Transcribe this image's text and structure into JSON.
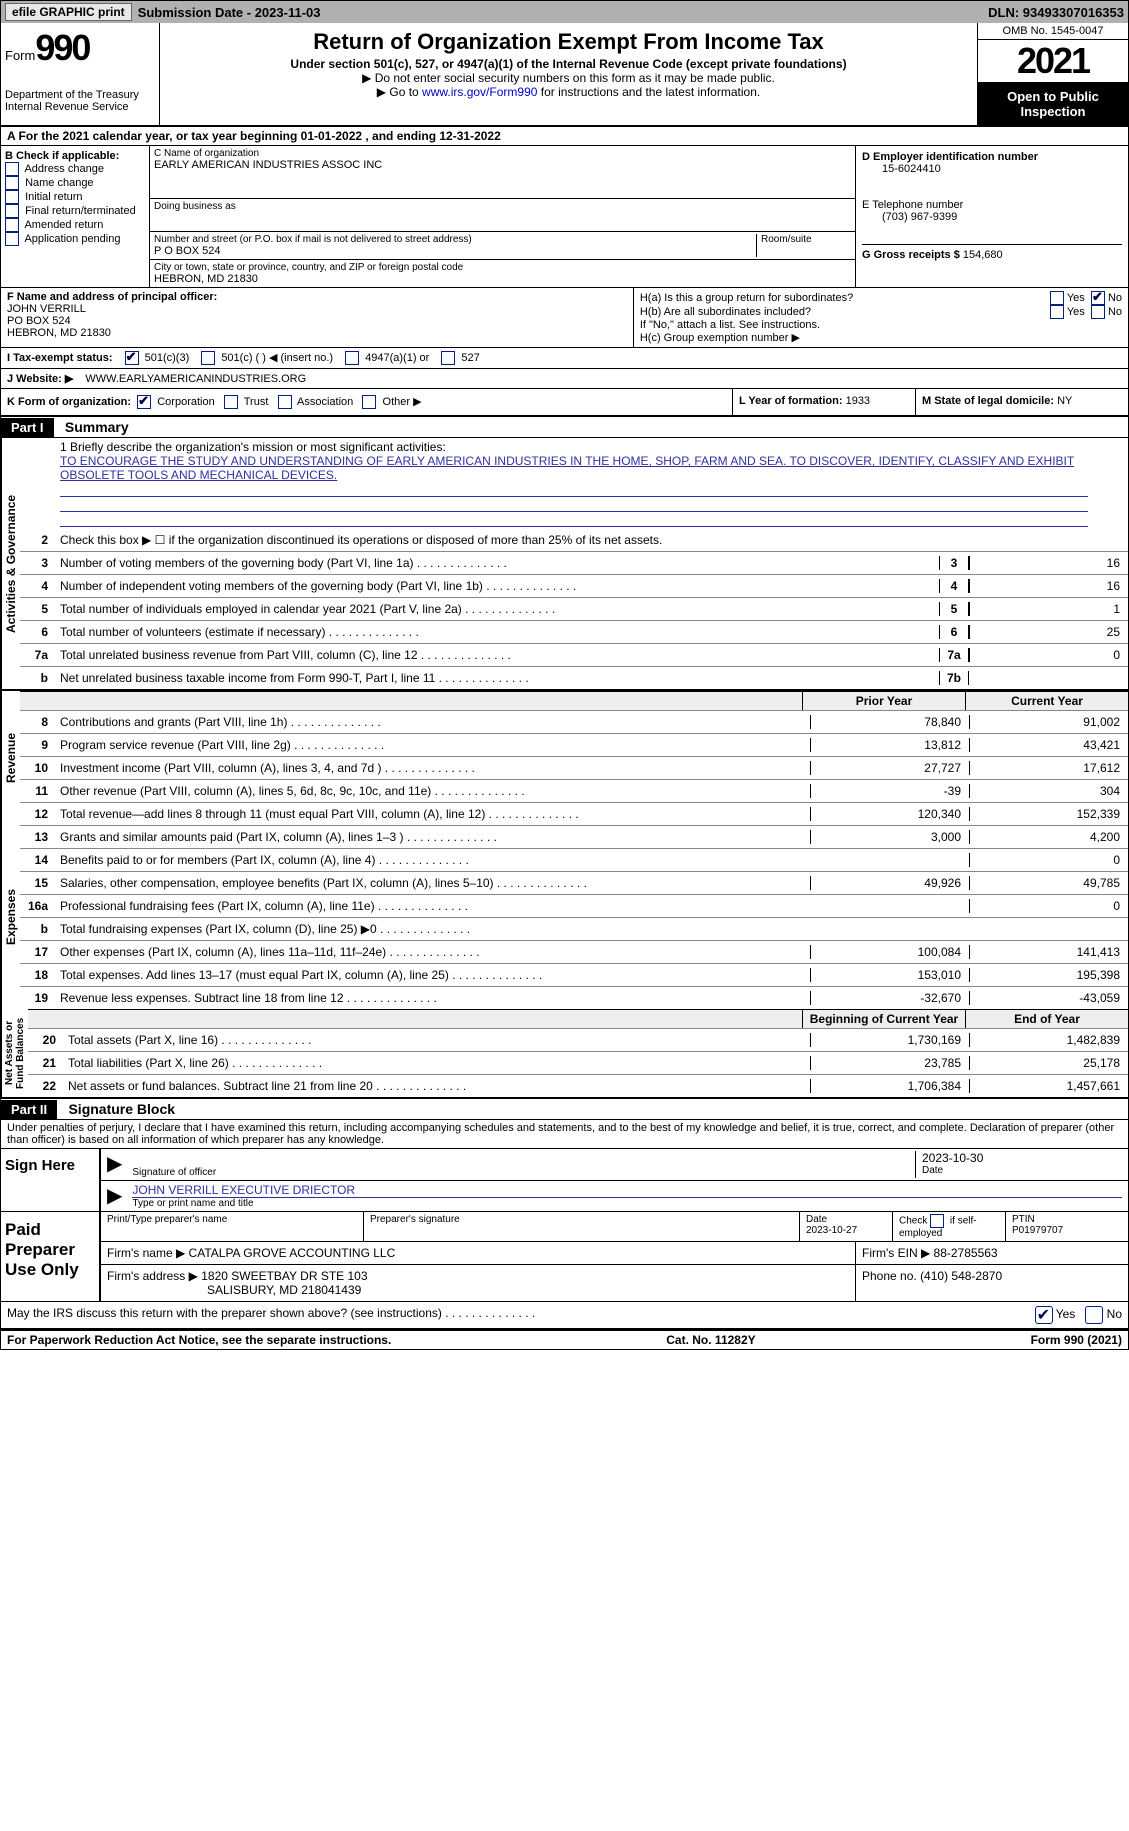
{
  "topbar": {
    "btn1": "efile GRAPHIC print",
    "submission": "Submission Date - 2023-11-03",
    "dln": "DLN: 93493307016353"
  },
  "header": {
    "form_prefix": "Form",
    "form_no": "990",
    "title": "Return of Organization Exempt From Income Tax",
    "sub1": "Under section 501(c), 527, or 4947(a)(1) of the Internal Revenue Code (except private foundations)",
    "sub2a": "▶ Do not enter social security numbers on this form as it may be made public.",
    "sub2b_pre": "▶ Go to ",
    "sub2b_link": "www.irs.gov/Form990",
    "sub2b_post": " for instructions and the latest information.",
    "dept": "Department of the Treasury\nInternal Revenue Service",
    "omb": "OMB No. 1545-0047",
    "year": "2021",
    "inspect": "Open to Public Inspection"
  },
  "line_a": "A For the 2021 calendar year, or tax year beginning 01-01-2022    , and ending 12-31-2022",
  "box_b": {
    "label": "B Check if applicable:",
    "opts": [
      "Address change",
      "Name change",
      "Initial return",
      "Final return/terminated",
      "Amended return",
      "Application pending"
    ]
  },
  "box_c": {
    "lbl_name": "C Name of organization",
    "name": "EARLY AMERICAN INDUSTRIES ASSOC INC",
    "lbl_dba": "Doing business as",
    "dba": "",
    "lbl_addr": "Number and street (or P.O. box if mail is not delivered to street address)",
    "lbl_room": "Room/suite",
    "addr": "P O BOX 524",
    "lbl_city": "City or town, state or province, country, and ZIP or foreign postal code",
    "city": "HEBRON, MD  21830"
  },
  "box_d": {
    "lbl_ein": "D Employer identification number",
    "ein": "15-6024410",
    "lbl_phone": "E Telephone number",
    "phone": "(703) 967-9399",
    "lbl_gross": "G Gross receipts $",
    "gross": "154,680"
  },
  "box_f": {
    "lbl": "F  Name and address of principal officer:",
    "name": "JOHN VERRILL",
    "addr1": "PO BOX 524",
    "addr2": "HEBRON, MD   21830"
  },
  "box_h": {
    "ha": "H(a)  Is this a group return for subordinates?",
    "hb": "H(b)  Are all subordinates included?",
    "hb_note": "If \"No,\" attach a list. See instructions.",
    "hc": "H(c)  Group exemption number ▶",
    "yes": "Yes",
    "no": "No"
  },
  "line_i": {
    "lbl": "I   Tax-exempt status:",
    "o1": "501(c)(3)",
    "o2": "501(c) (  ) ◀ (insert no.)",
    "o3": "4947(a)(1) or",
    "o4": "527"
  },
  "line_j": {
    "lbl": "J   Website: ▶",
    "val": "WWW.EARLYAMERICANINDUSTRIES.ORG"
  },
  "line_k": {
    "lbl": "K Form of organization:",
    "o1": "Corporation",
    "o2": "Trust",
    "o3": "Association",
    "o4": "Other ▶"
  },
  "line_l": {
    "lbl": "L Year of formation:",
    "val": "1933"
  },
  "line_m": {
    "lbl": "M State of legal domicile:",
    "val": "NY"
  },
  "part1": {
    "hdr": "Part I",
    "title": "Summary"
  },
  "mission": {
    "lead": "1  Briefly describe the organization's mission or most significant activities:",
    "text": "TO ENCOURAGE THE STUDY AND UNDERSTANDING OF EARLY AMERICAN INDUSTRIES IN THE HOME, SHOP, FARM AND SEA. TO DISCOVER, IDENTIFY, CLASSIFY AND EXHIBIT OBSOLETE TOOLS AND MECHANICAL DEVICES."
  },
  "line2": "Check this box ▶ ☐ if the organization discontinued its operations or disposed of more than 25% of its net assets.",
  "summary_rows": [
    {
      "n": "3",
      "d": "Number of voting members of the governing body (Part VI, line 1a)",
      "no": "3",
      "v": "16"
    },
    {
      "n": "4",
      "d": "Number of independent voting members of the governing body (Part VI, line 1b)",
      "no": "4",
      "v": "16"
    },
    {
      "n": "5",
      "d": "Total number of individuals employed in calendar year 2021 (Part V, line 2a)",
      "no": "5",
      "v": "1"
    },
    {
      "n": "6",
      "d": "Total number of volunteers (estimate if necessary)",
      "no": "6",
      "v": "25"
    },
    {
      "n": "7a",
      "d": "Total unrelated business revenue from Part VIII, column (C), line 12",
      "no": "7a",
      "v": "0"
    },
    {
      "n": "b",
      "d": "Net unrelated business taxable income from Form 990-T, Part I, line 11",
      "no": "7b",
      "v": ""
    }
  ],
  "fin_headers": {
    "prior": "Prior Year",
    "current": "Current Year",
    "begin": "Beginning of Current Year",
    "end": "End of Year"
  },
  "revenue_rows": [
    {
      "n": "8",
      "d": "Contributions and grants (Part VIII, line 1h)",
      "p": "78,840",
      "c": "91,002"
    },
    {
      "n": "9",
      "d": "Program service revenue (Part VIII, line 2g)",
      "p": "13,812",
      "c": "43,421"
    },
    {
      "n": "10",
      "d": "Investment income (Part VIII, column (A), lines 3, 4, and 7d )",
      "p": "27,727",
      "c": "17,612"
    },
    {
      "n": "11",
      "d": "Other revenue (Part VIII, column (A), lines 5, 6d, 8c, 9c, 10c, and 11e)",
      "p": "-39",
      "c": "304"
    },
    {
      "n": "12",
      "d": "Total revenue—add lines 8 through 11 (must equal Part VIII, column (A), line 12)",
      "p": "120,340",
      "c": "152,339"
    }
  ],
  "expense_rows": [
    {
      "n": "13",
      "d": "Grants and similar amounts paid (Part IX, column (A), lines 1–3 )",
      "p": "3,000",
      "c": "4,200"
    },
    {
      "n": "14",
      "d": "Benefits paid to or for members (Part IX, column (A), line 4)",
      "p": "",
      "c": "0"
    },
    {
      "n": "15",
      "d": "Salaries, other compensation, employee benefits (Part IX, column (A), lines 5–10)",
      "p": "49,926",
      "c": "49,785"
    },
    {
      "n": "16a",
      "d": "Professional fundraising fees (Part IX, column (A), line 11e)",
      "p": "",
      "c": "0"
    },
    {
      "n": "b",
      "d": "Total fundraising expenses (Part IX, column (D), line 25) ▶0",
      "p": "shade",
      "c": "shade"
    },
    {
      "n": "17",
      "d": "Other expenses (Part IX, column (A), lines 11a–11d, 11f–24e)",
      "p": "100,084",
      "c": "141,413"
    },
    {
      "n": "18",
      "d": "Total expenses. Add lines 13–17 (must equal Part IX, column (A), line 25)",
      "p": "153,010",
      "c": "195,398"
    },
    {
      "n": "19",
      "d": "Revenue less expenses. Subtract line 18 from line 12",
      "p": "-32,670",
      "c": "-43,059"
    }
  ],
  "net_rows": [
    {
      "n": "20",
      "d": "Total assets (Part X, line 16)",
      "p": "1,730,169",
      "c": "1,482,839"
    },
    {
      "n": "21",
      "d": "Total liabilities (Part X, line 26)",
      "p": "23,785",
      "c": "25,178"
    },
    {
      "n": "22",
      "d": "Net assets or fund balances. Subtract line 21 from line 20",
      "p": "1,706,384",
      "c": "1,457,661"
    }
  ],
  "vlabels": {
    "ag": "Activities & Governance",
    "rev": "Revenue",
    "exp": "Expenses",
    "net": "Net Assets or\nFund Balances"
  },
  "part2": {
    "hdr": "Part II",
    "title": "Signature Block"
  },
  "penalties": "Under penalties of perjury, I declare that I have examined this return, including accompanying schedules and statements, and to the best of my knowledge and belief, it is true, correct, and complete. Declaration of preparer (other than officer) is based on all information of which preparer has any knowledge.",
  "sign": {
    "here": "Sign Here",
    "sig_of": "Signature of officer",
    "date_lbl": "Date",
    "date": "2023-10-30",
    "printed": "JOHN VERRILL  EXECUTIVE DRIECTOR",
    "printed_lbl": "Type or print name and title"
  },
  "preparer": {
    "here": "Paid Preparer Use Only",
    "h1": "Print/Type preparer's name",
    "h2": "Preparer's signature",
    "h3": "Date",
    "h3v": "2023-10-27",
    "h4a": "Check",
    "h4b": "if self-employed",
    "h5": "PTIN",
    "h5v": "P01979707",
    "firm_lbl": "Firm's name    ▶",
    "firm": "CATALPA GROVE ACCOUNTING LLC",
    "ein_lbl": "Firm's EIN ▶",
    "ein": "88-2785563",
    "addr_lbl": "Firm's address ▶",
    "addr1": "1820 SWEETBAY DR STE 103",
    "addr2": "SALISBURY, MD  218041439",
    "phone_lbl": "Phone no.",
    "phone": "(410) 548-2870"
  },
  "may_irs": "May the IRS discuss this return with the preparer shown above? (see instructions)",
  "footer": {
    "l": "For Paperwork Reduction Act Notice, see the separate instructions.",
    "c": "Cat. No. 11282Y",
    "r": "Form 990 (2021)"
  }
}
